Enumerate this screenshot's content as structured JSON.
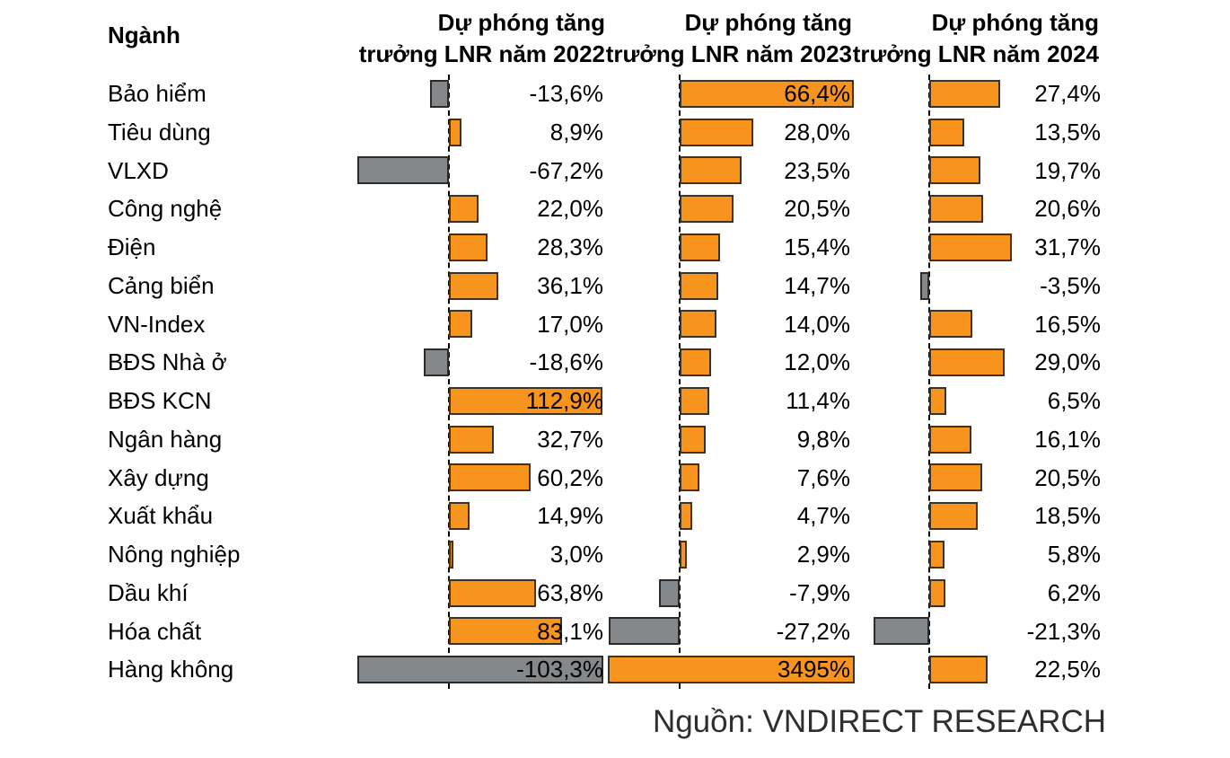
{
  "header": {
    "industry": "Ngành",
    "cols": [
      {
        "line1": "Dự phóng tăng",
        "line2": "trưởng LNR năm 2022"
      },
      {
        "line1": "Dự phóng tăng",
        "line2": "trưởng LNR năm 2023"
      },
      {
        "line1": "Dự phóng tăng",
        "line2": "trưởng LNR năm 2024"
      }
    ]
  },
  "source": "Nguồn: VNDIRECT RESEARCH",
  "chart_data": {
    "type": "bar",
    "orientation": "horizontal",
    "grid": false,
    "legend": "none",
    "value_format": "percent with comma decimal separator",
    "positive_color": "#F7941E",
    "negative_color": "#84888B",
    "categories": [
      "Bảo hiểm",
      "Tiêu dùng",
      "VLXD",
      "Công nghệ",
      "Điện",
      "Cảng biển",
      "VN-Index",
      "BĐS Nhà ở",
      "BĐS KCN",
      "Ngân hàng",
      "Xây dựng",
      "Xuất khẩu",
      "Nông nghiệp",
      "Dầu khí",
      "Hóa chất",
      "Hàng không"
    ],
    "series": [
      {
        "name": "Dự phóng tăng trưởng LNR năm 2022",
        "values": [
          -13.6,
          8.9,
          -67.2,
          22.0,
          28.3,
          36.1,
          17.0,
          -18.6,
          112.9,
          32.7,
          60.2,
          14.9,
          3.0,
          63.8,
          83.1,
          -103.3
        ],
        "labels": [
          "-13,6%",
          "8,9%",
          "-67,2%",
          "22,0%",
          "28,3%",
          "36,1%",
          "17,0%",
          "-18,6%",
          "112,9%",
          "32,7%",
          "60,2%",
          "14,9%",
          "3,0%",
          "63,8%",
          "83,1%",
          "-103,3%"
        ]
      },
      {
        "name": "Dự phóng tăng trưởng LNR năm 2023",
        "values": [
          66.4,
          28.0,
          23.5,
          20.5,
          15.4,
          14.7,
          14.0,
          12.0,
          11.4,
          9.8,
          7.6,
          4.7,
          2.9,
          -7.9,
          -27.2,
          3495
        ],
        "labels": [
          "66,4%",
          "28,0%",
          "23,5%",
          "20,5%",
          "15,4%",
          "14,7%",
          "14,0%",
          "12,0%",
          "11,4%",
          "9,8%",
          "7,6%",
          "4,7%",
          "2,9%",
          "-7,9%",
          "-27,2%",
          "3495%"
        ]
      },
      {
        "name": "Dự phóng tăng trưởng LNR năm 2024",
        "values": [
          27.4,
          13.5,
          19.7,
          20.6,
          31.7,
          -3.5,
          16.5,
          29.0,
          6.5,
          16.1,
          20.5,
          18.5,
          5.8,
          6.2,
          -21.3,
          22.5
        ],
        "labels": [
          "27,4%",
          "13,5%",
          "19,7%",
          "20,6%",
          "31,7%",
          "-3,5%",
          "16,5%",
          "29,0%",
          "6,5%",
          "16,1%",
          "20,5%",
          "18,5%",
          "5,8%",
          "6,2%",
          "-21,3%",
          "22,5%"
        ]
      }
    ]
  }
}
